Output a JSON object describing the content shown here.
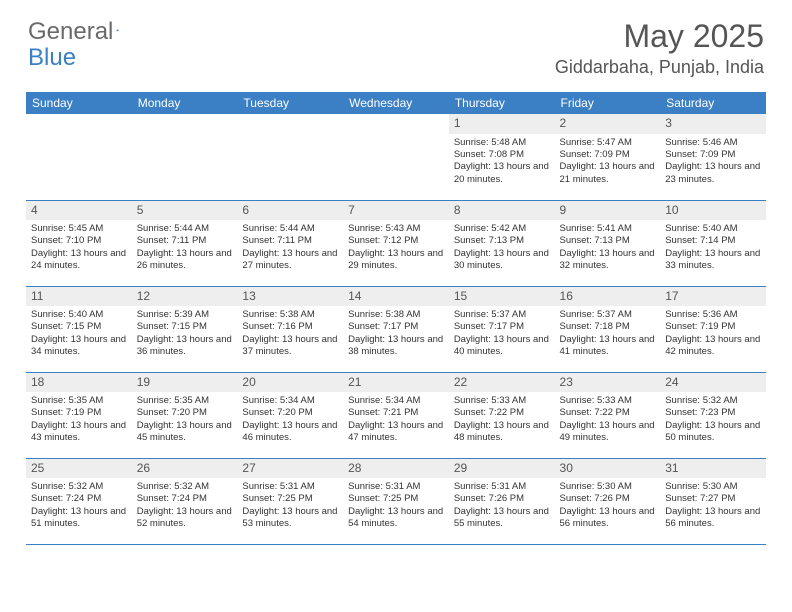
{
  "logo": {
    "text1": "General",
    "text2": "Blue"
  },
  "title": "May 2025",
  "location": "Giddarbaha, Punjab, India",
  "colors": {
    "header_bg": "#3b7fc4",
    "header_text": "#ffffff",
    "daynum_bg": "#eeeeee",
    "border": "#3b7fc4",
    "logo_gray": "#6a6a6a",
    "logo_blue": "#3b7fc4",
    "title_color": "#555555"
  },
  "weekdays": [
    "Sunday",
    "Monday",
    "Tuesday",
    "Wednesday",
    "Thursday",
    "Friday",
    "Saturday"
  ],
  "weeks": [
    [
      null,
      null,
      null,
      null,
      {
        "n": "1",
        "sr": "5:48 AM",
        "ss": "7:08 PM",
        "dl": "13 hours and 20 minutes."
      },
      {
        "n": "2",
        "sr": "5:47 AM",
        "ss": "7:09 PM",
        "dl": "13 hours and 21 minutes."
      },
      {
        "n": "3",
        "sr": "5:46 AM",
        "ss": "7:09 PM",
        "dl": "13 hours and 23 minutes."
      }
    ],
    [
      {
        "n": "4",
        "sr": "5:45 AM",
        "ss": "7:10 PM",
        "dl": "13 hours and 24 minutes."
      },
      {
        "n": "5",
        "sr": "5:44 AM",
        "ss": "7:11 PM",
        "dl": "13 hours and 26 minutes."
      },
      {
        "n": "6",
        "sr": "5:44 AM",
        "ss": "7:11 PM",
        "dl": "13 hours and 27 minutes."
      },
      {
        "n": "7",
        "sr": "5:43 AM",
        "ss": "7:12 PM",
        "dl": "13 hours and 29 minutes."
      },
      {
        "n": "8",
        "sr": "5:42 AM",
        "ss": "7:13 PM",
        "dl": "13 hours and 30 minutes."
      },
      {
        "n": "9",
        "sr": "5:41 AM",
        "ss": "7:13 PM",
        "dl": "13 hours and 32 minutes."
      },
      {
        "n": "10",
        "sr": "5:40 AM",
        "ss": "7:14 PM",
        "dl": "13 hours and 33 minutes."
      }
    ],
    [
      {
        "n": "11",
        "sr": "5:40 AM",
        "ss": "7:15 PM",
        "dl": "13 hours and 34 minutes."
      },
      {
        "n": "12",
        "sr": "5:39 AM",
        "ss": "7:15 PM",
        "dl": "13 hours and 36 minutes."
      },
      {
        "n": "13",
        "sr": "5:38 AM",
        "ss": "7:16 PM",
        "dl": "13 hours and 37 minutes."
      },
      {
        "n": "14",
        "sr": "5:38 AM",
        "ss": "7:17 PM",
        "dl": "13 hours and 38 minutes."
      },
      {
        "n": "15",
        "sr": "5:37 AM",
        "ss": "7:17 PM",
        "dl": "13 hours and 40 minutes."
      },
      {
        "n": "16",
        "sr": "5:37 AM",
        "ss": "7:18 PM",
        "dl": "13 hours and 41 minutes."
      },
      {
        "n": "17",
        "sr": "5:36 AM",
        "ss": "7:19 PM",
        "dl": "13 hours and 42 minutes."
      }
    ],
    [
      {
        "n": "18",
        "sr": "5:35 AM",
        "ss": "7:19 PM",
        "dl": "13 hours and 43 minutes."
      },
      {
        "n": "19",
        "sr": "5:35 AM",
        "ss": "7:20 PM",
        "dl": "13 hours and 45 minutes."
      },
      {
        "n": "20",
        "sr": "5:34 AM",
        "ss": "7:20 PM",
        "dl": "13 hours and 46 minutes."
      },
      {
        "n": "21",
        "sr": "5:34 AM",
        "ss": "7:21 PM",
        "dl": "13 hours and 47 minutes."
      },
      {
        "n": "22",
        "sr": "5:33 AM",
        "ss": "7:22 PM",
        "dl": "13 hours and 48 minutes."
      },
      {
        "n": "23",
        "sr": "5:33 AM",
        "ss": "7:22 PM",
        "dl": "13 hours and 49 minutes."
      },
      {
        "n": "24",
        "sr": "5:32 AM",
        "ss": "7:23 PM",
        "dl": "13 hours and 50 minutes."
      }
    ],
    [
      {
        "n": "25",
        "sr": "5:32 AM",
        "ss": "7:24 PM",
        "dl": "13 hours and 51 minutes."
      },
      {
        "n": "26",
        "sr": "5:32 AM",
        "ss": "7:24 PM",
        "dl": "13 hours and 52 minutes."
      },
      {
        "n": "27",
        "sr": "5:31 AM",
        "ss": "7:25 PM",
        "dl": "13 hours and 53 minutes."
      },
      {
        "n": "28",
        "sr": "5:31 AM",
        "ss": "7:25 PM",
        "dl": "13 hours and 54 minutes."
      },
      {
        "n": "29",
        "sr": "5:31 AM",
        "ss": "7:26 PM",
        "dl": "13 hours and 55 minutes."
      },
      {
        "n": "30",
        "sr": "5:30 AM",
        "ss": "7:26 PM",
        "dl": "13 hours and 56 minutes."
      },
      {
        "n": "31",
        "sr": "5:30 AM",
        "ss": "7:27 PM",
        "dl": "13 hours and 56 minutes."
      }
    ]
  ],
  "labels": {
    "sunrise": "Sunrise:",
    "sunset": "Sunset:",
    "daylight": "Daylight:"
  }
}
